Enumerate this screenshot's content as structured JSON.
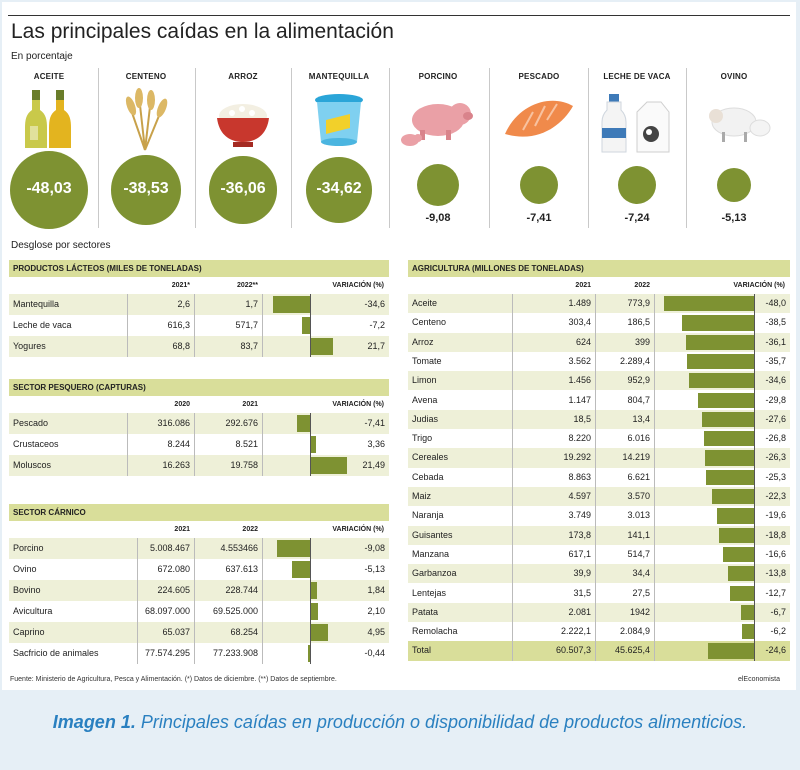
{
  "title": "Las principales caídas en la alimentación",
  "subtitle": "En porcentaje",
  "breakdown_label": "Desglose por sectores",
  "top_items": [
    {
      "label": "ACEITE",
      "value": "-48,03",
      "icon": "oil-bottles-icon"
    },
    {
      "label": "CENTENO",
      "value": "-38,53",
      "icon": "rye-wheat-icon"
    },
    {
      "label": "ARROZ",
      "value": "-36,06",
      "icon": "rice-bowl-icon"
    },
    {
      "label": "MANTEQUILLA",
      "value": "-34,62",
      "icon": "butter-tub-icon"
    },
    {
      "label": "PORCINO",
      "value": "-9,08",
      "icon": "pig-icon"
    },
    {
      "label": "PESCADO",
      "value": "-7,41",
      "icon": "salmon-fillet-icon"
    },
    {
      "label": "LECHE DE VACA",
      "value": "-7,24",
      "icon": "milk-bottle-icon"
    },
    {
      "label": "OVINO",
      "value": "-5,13",
      "icon": "sheep-icon"
    }
  ],
  "tables": {
    "lacteos": {
      "title": "PRODUCTOS LÁCTEOS (MILES DE TONELADAS)",
      "headers": [
        "2021*",
        "2022**",
        "VARIACIÓN (%)"
      ],
      "rows": [
        {
          "name": "Mantequilla",
          "a": "2,6",
          "b": "1,7",
          "v": "-34,6",
          "n": -34.6
        },
        {
          "name": "Leche de vaca",
          "a": "616,3",
          "b": "571,7",
          "v": "-7,2",
          "n": -7.2
        },
        {
          "name": "Yogures",
          "a": "68,8",
          "b": "83,7",
          "v": "21,7",
          "n": 21.7
        }
      ]
    },
    "pesquero": {
      "title": "SECTOR PESQUERO (CAPTURAS)",
      "headers": [
        "2020",
        "2021",
        "VARIACIÓN (%)"
      ],
      "rows": [
        {
          "name": "Pescado",
          "a": "316.086",
          "b": "292.676",
          "v": "-7,41",
          "n": -7.41
        },
        {
          "name": "Crustaceos",
          "a": "8.244",
          "b": "8.521",
          "v": "3,36",
          "n": 3.36
        },
        {
          "name": "Moluscos",
          "a": "16.263",
          "b": "19.758",
          "v": "21,49",
          "n": 21.49
        }
      ]
    },
    "carnico": {
      "title": "SECTOR CÁRNICO",
      "headers": [
        "2021",
        "2022",
        "VARIACIÓN (%)"
      ],
      "rows": [
        {
          "name": "Porcino",
          "a": "5.008.467",
          "b": "4.553466",
          "v": "-9,08",
          "n": -9.08
        },
        {
          "name": "Ovino",
          "a": "672.080",
          "b": "637.613",
          "v": "-5,13",
          "n": -5.13
        },
        {
          "name": "Bovino",
          "a": "224.605",
          "b": "228.744",
          "v": "1,84",
          "n": 1.84
        },
        {
          "name": "Avicultura",
          "a": "68.097.000",
          "b": "69.525.000",
          "v": "2,10",
          "n": 2.1
        },
        {
          "name": "Caprino",
          "a": "65.037",
          "b": "68.254",
          "v": "4,95",
          "n": 4.95
        },
        {
          "name": "Sacfricio de animales",
          "a": "77.574.295",
          "b": "77.233.908",
          "v": "-0,44",
          "n": -0.44
        }
      ]
    },
    "agricultura": {
      "title": "AGRICULTURA (MILLONES DE TONELADAS)",
      "headers": [
        "2021",
        "2022",
        "VARIACIÓN (%)"
      ],
      "rows": [
        {
          "name": "Aceite",
          "a": "1.489",
          "b": "773,9",
          "v": "-48,0",
          "n": -48.0
        },
        {
          "name": "Centeno",
          "a": "303,4",
          "b": "186,5",
          "v": "-38,5",
          "n": -38.5
        },
        {
          "name": "Arroz",
          "a": "624",
          "b": "399",
          "v": "-36,1",
          "n": -36.1
        },
        {
          "name": "Tomate",
          "a": "3.562",
          "b": "2.289,4",
          "v": "-35,7",
          "n": -35.7
        },
        {
          "name": "Limon",
          "a": "1.456",
          "b": "952,9",
          "v": "-34,6",
          "n": -34.6
        },
        {
          "name": "Avena",
          "a": "1.147",
          "b": "804,7",
          "v": "-29,8",
          "n": -29.8
        },
        {
          "name": "Judias",
          "a": "18,5",
          "b": "13,4",
          "v": "-27,6",
          "n": -27.6
        },
        {
          "name": "Trigo",
          "a": "8.220",
          "b": "6.016",
          "v": "-26,8",
          "n": -26.8
        },
        {
          "name": "Cereales",
          "a": "19.292",
          "b": "14.219",
          "v": "-26,3",
          "n": -26.3
        },
        {
          "name": "Cebada",
          "a": "8.863",
          "b": "6.621",
          "v": "-25,3",
          "n": -25.3
        },
        {
          "name": "Maiz",
          "a": "4.597",
          "b": "3.570",
          "v": "-22,3",
          "n": -22.3
        },
        {
          "name": "Naranja",
          "a": "3.749",
          "b": "3.013",
          "v": "-19,6",
          "n": -19.6
        },
        {
          "name": "Guisantes",
          "a": "173,8",
          "b": "141,1",
          "v": "-18,8",
          "n": -18.8
        },
        {
          "name": "Manzana",
          "a": "617,1",
          "b": "514,7",
          "v": "-16,6",
          "n": -16.6
        },
        {
          "name": "Garbanzoa",
          "a": "39,9",
          "b": "34,4",
          "v": "-13,8",
          "n": -13.8
        },
        {
          "name": "Lentejas",
          "a": "31,5",
          "b": "27,5",
          "v": "-12,7",
          "n": -12.7
        },
        {
          "name": "Patata",
          "a": "2.081",
          "b": "1942",
          "v": "-6,7",
          "n": -6.7
        },
        {
          "name": "Remolacha",
          "a": "2.222,1",
          "b": "2.084,9",
          "v": "-6,2",
          "n": -6.2
        },
        {
          "name": "Total",
          "a": "60.507,3",
          "b": "45.625,4",
          "v": "-24,6",
          "n": -24.6
        }
      ]
    }
  },
  "source": "Fuente: Ministerio de Agricultura, Pesca y Alimentación. (*) Datos de diciembre. (**) Datos de septiembre.",
  "brand": "elEconomista",
  "caption_bold": "Imagen 1.",
  "caption_rest": " Principales caídas en producción o disponibilidad de productos alimenticios.",
  "colors": {
    "accent": "#7e9232",
    "header_band": "#d9de9a",
    "row_alt": "#eef0d8",
    "caption": "#2a80c0"
  },
  "chart_data": [
    {
      "type": "bar",
      "title": "Las principales caídas en la alimentación",
      "ylabel": "En porcentaje",
      "categories": [
        "ACEITE",
        "CENTENO",
        "ARROZ",
        "MANTEQUILLA",
        "PORCINO",
        "PESCADO",
        "LECHE DE VACA",
        "OVINO"
      ],
      "values": [
        -48.03,
        -38.53,
        -36.06,
        -34.62,
        -9.08,
        -7.41,
        -7.24,
        -5.13
      ]
    },
    {
      "type": "bar",
      "title": "PRODUCTOS LÁCTEOS (MILES DE TONELADAS)",
      "categories": [
        "Mantequilla",
        "Leche de vaca",
        "Yogures"
      ],
      "values": [
        -34.6,
        -7.2,
        21.7
      ]
    },
    {
      "type": "bar",
      "title": "SECTOR PESQUERO (CAPTURAS)",
      "categories": [
        "Pescado",
        "Crustaceos",
        "Moluscos"
      ],
      "values": [
        -7.41,
        3.36,
        21.49
      ]
    },
    {
      "type": "bar",
      "title": "SECTOR CÁRNICO",
      "categories": [
        "Porcino",
        "Ovino",
        "Bovino",
        "Avicultura",
        "Caprino",
        "Sacfricio de animales"
      ],
      "values": [
        -9.08,
        -5.13,
        1.84,
        2.1,
        4.95,
        -0.44
      ]
    },
    {
      "type": "bar",
      "title": "AGRICULTURA (MILLONES DE TONELADAS)",
      "categories": [
        "Aceite",
        "Centeno",
        "Arroz",
        "Tomate",
        "Limon",
        "Avena",
        "Judias",
        "Trigo",
        "Cereales",
        "Cebada",
        "Maiz",
        "Naranja",
        "Guisantes",
        "Manzana",
        "Garbanzoa",
        "Lentejas",
        "Patata",
        "Remolacha",
        "Total"
      ],
      "values": [
        -48.0,
        -38.5,
        -36.1,
        -35.7,
        -34.6,
        -29.8,
        -27.6,
        -26.8,
        -26.3,
        -25.3,
        -22.3,
        -19.6,
        -18.8,
        -16.6,
        -13.8,
        -12.7,
        -6.7,
        -6.2,
        -24.6
      ]
    }
  ]
}
